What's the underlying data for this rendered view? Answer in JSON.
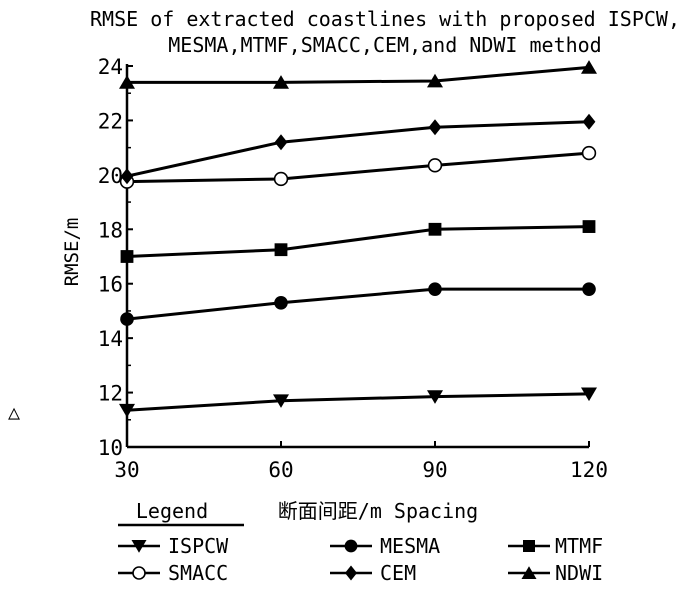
{
  "chart_data": {
    "type": "line",
    "title_line1": "RMSE of extracted coastlines with proposed ISPCW,",
    "title_line2": "MESMA,MTMF,SMACC,CEM,and NDWI method",
    "xlabel": "断面间距/m Spacing",
    "ylabel": "RMSE/m",
    "x": [
      30,
      60,
      90,
      120
    ],
    "xticks": [
      "30",
      "60",
      "90",
      "120"
    ],
    "yticks": [
      "10",
      "12",
      "14",
      "16",
      "18",
      "20",
      "22",
      "24"
    ],
    "ylim": [
      10,
      24
    ],
    "xlim": [
      30,
      120
    ],
    "legend_title": "Legend",
    "side_mark": "△",
    "series": [
      {
        "name": "ISPCW",
        "marker": "triangle-down",
        "values": [
          11.35,
          11.7,
          11.85,
          11.95
        ]
      },
      {
        "name": "MESMA",
        "marker": "circle-filled",
        "values": [
          14.7,
          15.3,
          15.8,
          15.8
        ]
      },
      {
        "name": "MTMF",
        "marker": "square",
        "values": [
          17.0,
          17.25,
          18.0,
          18.1
        ]
      },
      {
        "name": "SMACC",
        "marker": "circle-open",
        "values": [
          19.75,
          19.85,
          20.35,
          20.8
        ]
      },
      {
        "name": "CEM",
        "marker": "diamond",
        "values": [
          19.95,
          21.2,
          21.75,
          21.95
        ]
      },
      {
        "name": "NDWI",
        "marker": "triangle-up",
        "values": [
          23.4,
          23.4,
          23.45,
          23.95
        ]
      }
    ],
    "line_color": "#000000"
  }
}
